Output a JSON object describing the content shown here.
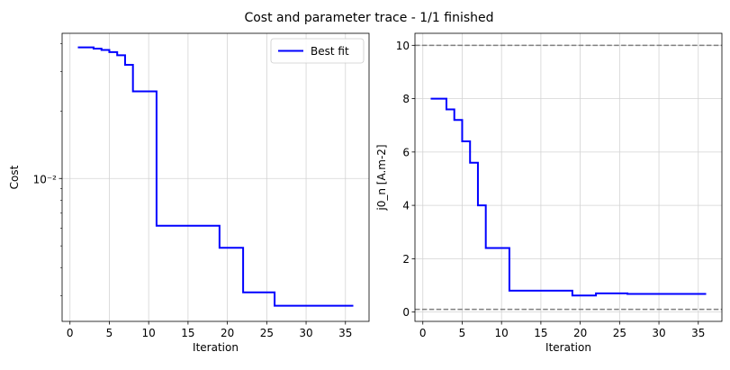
{
  "figure_title": "Cost and parameter trace - 1/1 finished",
  "colors": {
    "line": "#0000ff",
    "grid": "#d3d3d3",
    "bound": "#808080",
    "axis": "#000000"
  },
  "chart_data": [
    {
      "type": "line",
      "id": "cost",
      "title": "",
      "xlabel": "Iteration",
      "ylabel": "Cost",
      "yscale": "log",
      "xlim": [
        -1,
        38
      ],
      "ylim": [
        0.0023,
        0.0445
      ],
      "xticks": [
        0,
        5,
        10,
        15,
        20,
        25,
        30,
        35
      ],
      "yticks_major": [
        0.01
      ],
      "ytick_major_labels": [
        "10⁻²"
      ],
      "yticks_minor": [
        0.003,
        0.004,
        0.005,
        0.006,
        0.007,
        0.008,
        0.009,
        0.02,
        0.03,
        0.04
      ],
      "grid": true,
      "legend": {
        "position": "top-right",
        "entries": [
          "Best fit"
        ]
      },
      "series": [
        {
          "name": "Best fit",
          "x": [
            1,
            2,
            3,
            4,
            5,
            6,
            7,
            8,
            9,
            10,
            11,
            12,
            13,
            14,
            15,
            16,
            17,
            18,
            19,
            20,
            21,
            22,
            23,
            24,
            25,
            26,
            27,
            28,
            29,
            30,
            31,
            32,
            33,
            34,
            35,
            36
          ],
          "y": [
            0.0385,
            0.0385,
            0.038,
            0.0375,
            0.0367,
            0.0355,
            0.0322,
            0.0245,
            0.0245,
            0.0245,
            0.00615,
            0.00615,
            0.00615,
            0.00615,
            0.00615,
            0.00615,
            0.00615,
            0.00615,
            0.0049,
            0.0049,
            0.0049,
            0.0031,
            0.0031,
            0.0031,
            0.0031,
            0.0027,
            0.0027,
            0.0027,
            0.0027,
            0.0027,
            0.0027,
            0.0027,
            0.0027,
            0.0027,
            0.0027,
            0.0027
          ]
        }
      ]
    },
    {
      "type": "line",
      "id": "param",
      "title": "",
      "xlabel": "Iteration",
      "ylabel": "j0_n [A.m-2]",
      "yscale": "linear",
      "xlim": [
        -1,
        38
      ],
      "ylim": [
        -0.35,
        10.45
      ],
      "xticks": [
        0,
        5,
        10,
        15,
        20,
        25,
        30,
        35
      ],
      "yticks": [
        0,
        2,
        4,
        6,
        8,
        10
      ],
      "grid": true,
      "bounds": [
        0.1,
        10
      ],
      "series": [
        {
          "name": "Best fit",
          "x": [
            1,
            2,
            3,
            4,
            5,
            6,
            7,
            8,
            9,
            10,
            11,
            12,
            13,
            14,
            15,
            16,
            17,
            18,
            19,
            20,
            21,
            22,
            23,
            24,
            25,
            26,
            27,
            28,
            29,
            30,
            31,
            32,
            33,
            34,
            35,
            36
          ],
          "y": [
            8.0,
            8.0,
            7.6,
            7.2,
            6.4,
            5.6,
            4.0,
            2.4,
            2.4,
            2.4,
            0.8,
            0.8,
            0.8,
            0.8,
            0.8,
            0.8,
            0.8,
            0.8,
            0.62,
            0.62,
            0.62,
            0.7,
            0.7,
            0.7,
            0.7,
            0.68,
            0.68,
            0.68,
            0.68,
            0.68,
            0.68,
            0.68,
            0.68,
            0.68,
            0.68,
            0.68
          ]
        }
      ]
    }
  ]
}
